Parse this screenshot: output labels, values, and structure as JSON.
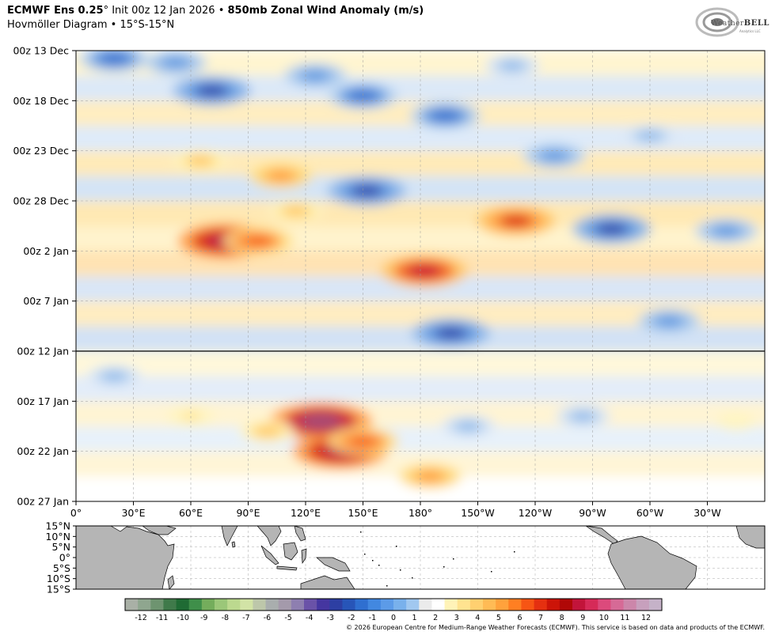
{
  "header": {
    "model": "ECMWF Ens 0.25",
    "degree": "°",
    "init": "Init 00z 12 Jan 2026",
    "bullet": "•",
    "product": "850mb Zonal Wind Anomaly (m/s)",
    "subtitle": "Hovmöller Diagram • 15°S-15°N"
  },
  "logo": {
    "text_a": "Weather",
    "text_b": "BELL",
    "sub": "Analytics LLC"
  },
  "footer": "© 2026 European Centre for Medium-Range Weather Forecasts (ECMWF). This service is based on data and products of the ECMWF.",
  "chart_data": {
    "type": "heatmap",
    "x_axis": {
      "range": [
        "0°",
        "360°"
      ],
      "ticks": [
        {
          "lon": 0,
          "label": "0°"
        },
        {
          "lon": 30,
          "label": "30°E"
        },
        {
          "lon": 60,
          "label": "60°E"
        },
        {
          "lon": 90,
          "label": "90°E"
        },
        {
          "lon": 120,
          "label": "120°E"
        },
        {
          "lon": 150,
          "label": "150°E"
        },
        {
          "lon": 180,
          "label": "180°"
        },
        {
          "lon": 210,
          "label": "150°W"
        },
        {
          "lon": 240,
          "label": "120°W"
        },
        {
          "lon": 270,
          "label": "90°W"
        },
        {
          "lon": 300,
          "label": "60°W"
        },
        {
          "lon": 330,
          "label": "30°W"
        }
      ]
    },
    "y_axis": {
      "range": [
        "00z 13 Dec",
        "00z 27 Jan"
      ],
      "ticks": [
        {
          "day": 0,
          "label": "00z 13 Dec"
        },
        {
          "day": 5,
          "label": "00z 18 Dec"
        },
        {
          "day": 10,
          "label": "00z 23 Dec"
        },
        {
          "day": 15,
          "label": "00z 28 Dec"
        },
        {
          "day": 20,
          "label": "00z 2 Jan"
        },
        {
          "day": 25,
          "label": "00z 7 Jan"
        },
        {
          "day": 30,
          "label": "00z 12 Jan"
        },
        {
          "day": 35,
          "label": "00z 17 Jan"
        },
        {
          "day": 40,
          "label": "00z 22 Jan"
        },
        {
          "day": 45,
          "label": "00z 27 Jan"
        }
      ],
      "init_line_day": 30
    },
    "anomalies": [
      {
        "lon": 20,
        "day": 0.8,
        "value": -5
      },
      {
        "lon": 52,
        "day": 1.2,
        "value": -4
      },
      {
        "lon": 71,
        "day": 4.0,
        "value": -6
      },
      {
        "lon": 125,
        "day": 2.5,
        "value": -4
      },
      {
        "lon": 150,
        "day": 4.5,
        "value": -5
      },
      {
        "lon": 193,
        "day": 6.5,
        "value": -5
      },
      {
        "lon": 228,
        "day": 1.5,
        "value": -3
      },
      {
        "lon": 250,
        "day": 10.5,
        "value": -4
      },
      {
        "lon": 300,
        "day": 8.5,
        "value": -3
      },
      {
        "lon": 152,
        "day": 14.0,
        "value": -6
      },
      {
        "lon": 280,
        "day": 17.8,
        "value": -6
      },
      {
        "lon": 340,
        "day": 18.0,
        "value": -4
      },
      {
        "lon": 196,
        "day": 28.2,
        "value": -6
      },
      {
        "lon": 310,
        "day": 27.0,
        "value": -4
      },
      {
        "lon": 20,
        "day": 32.5,
        "value": -3
      },
      {
        "lon": 205,
        "day": 37.5,
        "value": -3
      },
      {
        "lon": 265,
        "day": 36.5,
        "value": -3
      },
      {
        "lon": 65,
        "day": 11.0,
        "value": 3
      },
      {
        "lon": 107,
        "day": 12.5,
        "value": 4
      },
      {
        "lon": 78,
        "day": 19.0,
        "value": 8
      },
      {
        "lon": 95,
        "day": 19.0,
        "value": 5
      },
      {
        "lon": 182,
        "day": 22.0,
        "value": 7
      },
      {
        "lon": 230,
        "day": 17.0,
        "value": 6
      },
      {
        "lon": 115,
        "day": 16.0,
        "value": 3
      },
      {
        "lon": 128,
        "day": 37.0,
        "value": 9
      },
      {
        "lon": 138,
        "day": 40.0,
        "value": 8
      },
      {
        "lon": 150,
        "day": 39.0,
        "value": 5
      },
      {
        "lon": 100,
        "day": 38.0,
        "value": 3
      },
      {
        "lon": 60,
        "day": 36.5,
        "value": 2
      },
      {
        "lon": 185,
        "day": 42.5,
        "value": 4
      },
      {
        "lon": 345,
        "day": 37.0,
        "value": 1
      }
    ]
  },
  "map": {
    "y_ticks": [
      "15°N",
      "10°N",
      "5°N",
      "0°",
      "5°S",
      "10°S",
      "15°S"
    ]
  },
  "colorbar": {
    "labels": [
      "-12",
      "-11",
      "-10",
      "-9",
      "-8",
      "-7",
      "-6",
      "-5",
      "-4",
      "-3",
      "-2",
      "-1",
      "0",
      "1",
      "2",
      "3",
      "4",
      "5",
      "6",
      "7",
      "8",
      "9",
      "10",
      "11",
      "12"
    ],
    "colors": [
      "#a9b0a6",
      "#8fa68f",
      "#6e9470",
      "#3f7a4a",
      "#1f6b34",
      "#3f8f4a",
      "#74ad5c",
      "#9bc779",
      "#bcd98f",
      "#d2e3a6",
      "#bdc7aa",
      "#a9aeae",
      "#a49aab",
      "#8e7fb0",
      "#6a52a8",
      "#4536a0",
      "#2d3fa3",
      "#2755b8",
      "#2f6fd0",
      "#4288e0",
      "#5c9be8",
      "#79b1ec",
      "#a1c8f0",
      "#ebebeb",
      "#ffffff",
      "#fff3b8",
      "#ffe390",
      "#ffd070",
      "#ffbb55",
      "#ffa23c",
      "#ff7f22",
      "#f75514",
      "#e53010",
      "#cc1408",
      "#b00807",
      "#c2143a",
      "#d62a58",
      "#dc4a7c",
      "#d66a96",
      "#cc86aa",
      "#c7a0bd",
      "#c5b2c8"
    ]
  }
}
